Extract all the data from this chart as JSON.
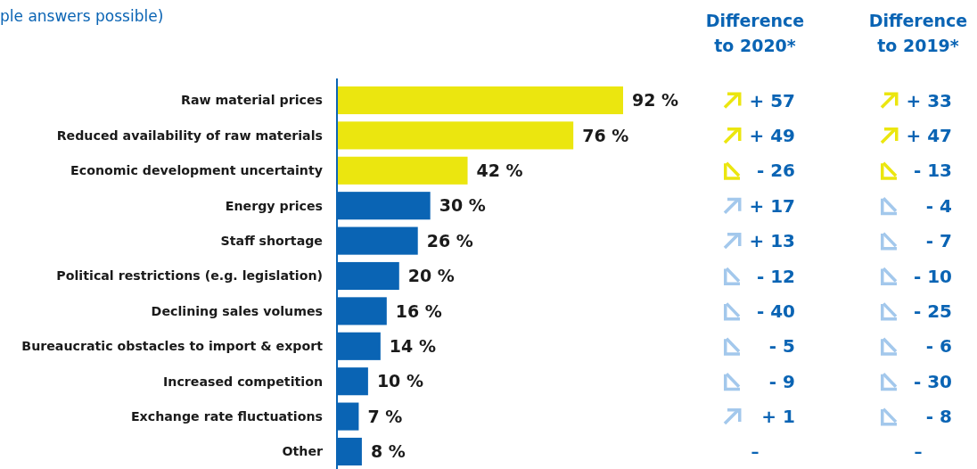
{
  "chart_data": {
    "type": "bar",
    "orientation": "horizontal",
    "subtitle": "ple answers possible)",
    "categories": [
      "Raw material prices",
      "Reduced availability of raw materials",
      "Economic development uncertainty",
      "Energy prices",
      "Staff shortage",
      "Political restrictions (e.g. legislation)",
      "Declining sales volumes",
      "Bureaucratic obstacles to import & export",
      "Increased competition",
      "Exchange rate fluctuations",
      "Other"
    ],
    "values": [
      92,
      76,
      42,
      30,
      26,
      20,
      16,
      14,
      10,
      7,
      8
    ],
    "colors": [
      "#ebe60f",
      "#ebe60f",
      "#ebe60f",
      "#0a64b4",
      "#0a64b4",
      "#0a64b4",
      "#0a64b4",
      "#0a64b4",
      "#0a64b4",
      "#0a64b4",
      "#0a64b4"
    ],
    "value_labels": [
      "92 %",
      "76 %",
      "42 %",
      "30 %",
      "26 %",
      "20 %",
      "16 %",
      "14 %",
      "10 %",
      "7 %",
      "8 %"
    ],
    "annotations": [
      "Difference\nto 2020*",
      "Difference\nto 2019*",
      "+ 57",
      "+ 33",
      "+ 49",
      "+ 47",
      "- 26",
      "- 13",
      "+ 17",
      "- 4",
      "+ 13",
      "- 7",
      "- 12",
      "- 10",
      "- 40",
      "- 25",
      "- 5",
      "- 6",
      "- 9",
      "- 30",
      "+ 1",
      "- 8",
      "–",
      "–"
    ]
  }
}
